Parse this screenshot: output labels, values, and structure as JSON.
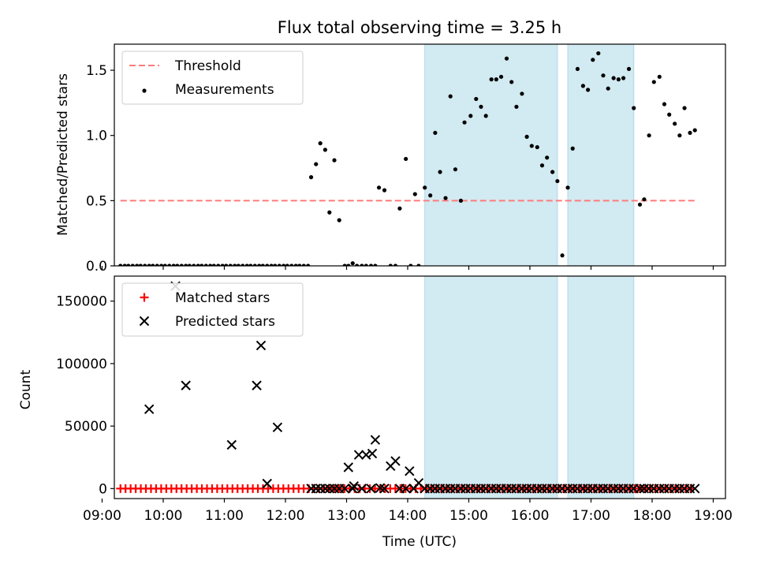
{
  "chart_data": [
    {
      "type": "scatter",
      "title": "Flux total observing time = 3.25 h",
      "ylabel": "Matched/Predicted stars",
      "xlabel": "",
      "xlim": [
        9.2,
        19.2
      ],
      "ylim": [
        0,
        1.7
      ],
      "yticks": [
        0.0,
        0.5,
        1.0,
        1.5
      ],
      "ytick_labels": [
        "0.0",
        "0.5",
        "1.0",
        "1.5"
      ],
      "legend": {
        "placement": "upper-left"
      },
      "shaded_spans": [
        [
          14.28,
          16.45
        ],
        [
          16.62,
          17.7
        ]
      ],
      "series": [
        {
          "name": "Threshold",
          "kind": "dashed-line",
          "color": "#ff7b7b",
          "x": [
            9.3,
            18.72
          ],
          "y": [
            0.5,
            0.5
          ]
        },
        {
          "name": "Measurements",
          "kind": "dots",
          "color": "#000000",
          "points": [
            [
              9.3,
              0
            ],
            [
              9.37,
              0
            ],
            [
              9.43,
              0
            ],
            [
              9.5,
              0
            ],
            [
              9.57,
              0
            ],
            [
              9.63,
              0
            ],
            [
              9.7,
              0
            ],
            [
              9.77,
              0
            ],
            [
              9.83,
              0
            ],
            [
              9.9,
              0
            ],
            [
              9.97,
              0
            ],
            [
              10.03,
              0
            ],
            [
              10.1,
              0
            ],
            [
              10.17,
              0
            ],
            [
              10.23,
              0
            ],
            [
              10.3,
              0
            ],
            [
              10.37,
              0
            ],
            [
              10.43,
              0
            ],
            [
              10.5,
              0
            ],
            [
              10.57,
              0
            ],
            [
              10.63,
              0
            ],
            [
              10.7,
              0
            ],
            [
              10.77,
              0
            ],
            [
              10.83,
              0
            ],
            [
              10.9,
              0
            ],
            [
              10.97,
              0
            ],
            [
              11.03,
              0
            ],
            [
              11.1,
              0
            ],
            [
              11.17,
              0
            ],
            [
              11.23,
              0
            ],
            [
              11.3,
              0
            ],
            [
              11.37,
              0
            ],
            [
              11.43,
              0
            ],
            [
              11.5,
              0
            ],
            [
              11.57,
              0
            ],
            [
              11.63,
              0
            ],
            [
              11.7,
              0
            ],
            [
              11.77,
              0
            ],
            [
              11.83,
              0
            ],
            [
              11.9,
              0
            ],
            [
              11.97,
              0
            ],
            [
              12.03,
              0
            ],
            [
              12.1,
              0
            ],
            [
              12.17,
              0
            ],
            [
              12.23,
              0
            ],
            [
              12.3,
              0
            ],
            [
              12.37,
              0
            ],
            [
              12.42,
              0.68
            ],
            [
              12.5,
              0.78
            ],
            [
              12.57,
              0.94
            ],
            [
              12.65,
              0.89
            ],
            [
              12.72,
              0.41
            ],
            [
              12.8,
              0.81
            ],
            [
              12.88,
              0.35
            ],
            [
              12.97,
              0
            ],
            [
              13.03,
              0
            ],
            [
              13.1,
              0.02
            ],
            [
              13.17,
              0
            ],
            [
              13.25,
              0
            ],
            [
              13.32,
              0
            ],
            [
              13.4,
              0
            ],
            [
              13.47,
              0
            ],
            [
              13.53,
              0.6
            ],
            [
              13.62,
              0.58
            ],
            [
              13.72,
              0
            ],
            [
              13.8,
              0
            ],
            [
              13.87,
              0.44
            ],
            [
              13.97,
              0.82
            ],
            [
              14.05,
              0
            ],
            [
              14.12,
              0.55
            ],
            [
              14.18,
              0
            ],
            [
              14.28,
              0.6
            ],
            [
              14.37,
              0.54
            ],
            [
              14.45,
              1.02
            ],
            [
              14.53,
              0.72
            ],
            [
              14.62,
              0.52
            ],
            [
              14.7,
              1.3
            ],
            [
              14.78,
              0.74
            ],
            [
              14.87,
              0.5
            ],
            [
              14.93,
              1.1
            ],
            [
              15.03,
              1.15
            ],
            [
              15.12,
              1.28
            ],
            [
              15.2,
              1.22
            ],
            [
              15.28,
              1.15
            ],
            [
              15.37,
              1.43
            ],
            [
              15.45,
              1.43
            ],
            [
              15.53,
              1.45
            ],
            [
              15.62,
              1.59
            ],
            [
              15.7,
              1.41
            ],
            [
              15.78,
              1.22
            ],
            [
              15.87,
              1.32
            ],
            [
              15.95,
              0.99
            ],
            [
              16.03,
              0.92
            ],
            [
              16.12,
              0.91
            ],
            [
              16.2,
              0.77
            ],
            [
              16.28,
              0.83
            ],
            [
              16.37,
              0.72
            ],
            [
              16.45,
              0.65
            ],
            [
              16.53,
              0.08
            ],
            [
              16.62,
              0.6
            ],
            [
              16.7,
              0.9
            ],
            [
              16.78,
              1.51
            ],
            [
              16.87,
              1.38
            ],
            [
              16.95,
              1.35
            ],
            [
              17.03,
              1.58
            ],
            [
              17.12,
              1.63
            ],
            [
              17.2,
              1.46
            ],
            [
              17.28,
              1.36
            ],
            [
              17.37,
              1.44
            ],
            [
              17.45,
              1.43
            ],
            [
              17.53,
              1.44
            ],
            [
              17.62,
              1.51
            ],
            [
              17.7,
              1.21
            ],
            [
              17.8,
              0.47
            ],
            [
              17.87,
              0.51
            ],
            [
              17.95,
              1.0
            ],
            [
              18.03,
              1.41
            ],
            [
              18.12,
              1.45
            ],
            [
              18.2,
              1.24
            ],
            [
              18.28,
              1.16
            ],
            [
              18.37,
              1.09
            ],
            [
              18.45,
              1.0
            ],
            [
              18.53,
              1.21
            ],
            [
              18.62,
              1.02
            ],
            [
              18.7,
              1.04
            ]
          ]
        }
      ]
    },
    {
      "type": "scatter",
      "title": "",
      "ylabel": "Count",
      "xlabel": "Time (UTC)",
      "xlim": [
        9.2,
        19.2
      ],
      "ylim": [
        -8000,
        170000
      ],
      "yticks": [
        0,
        50000,
        100000,
        150000
      ],
      "ytick_labels": [
        "0",
        "50000",
        "100000",
        "150000"
      ],
      "xticks": [
        9,
        10,
        11,
        12,
        13,
        14,
        15,
        16,
        17,
        18,
        19
      ],
      "xtick_labels": [
        "09:00",
        "10:00",
        "11:00",
        "12:00",
        "13:00",
        "14:00",
        "15:00",
        "16:00",
        "17:00",
        "18:00",
        "19:00"
      ],
      "legend": {
        "placement": "upper-left"
      },
      "shaded_spans": [
        [
          14.28,
          16.45
        ],
        [
          16.62,
          17.7
        ]
      ],
      "series": [
        {
          "name": "Matched stars",
          "kind": "plus",
          "color": "#ff0000",
          "x_start": 9.3,
          "x_end": 18.7,
          "x_step": 0.0833,
          "y": 0
        },
        {
          "name": "Predicted stars",
          "kind": "x",
          "color": "#000000",
          "points": [
            [
              9.77,
              63500
            ],
            [
              10.2,
              162000
            ],
            [
              10.37,
              82500
            ],
            [
              11.12,
              35000
            ],
            [
              11.53,
              82500
            ],
            [
              11.6,
              114500
            ],
            [
              11.7,
              4000
            ],
            [
              11.87,
              49000
            ],
            [
              13.03,
              17000
            ],
            [
              13.12,
              2000
            ],
            [
              13.2,
              27000
            ],
            [
              13.32,
              27000
            ],
            [
              13.42,
              28000
            ],
            [
              13.47,
              39000
            ],
            [
              13.55,
              500
            ],
            [
              13.62,
              0
            ],
            [
              13.72,
              18000
            ],
            [
              13.8,
              22000
            ],
            [
              14.03,
              14000
            ],
            [
              14.18,
              4500
            ],
            [
              12.42,
              0
            ],
            [
              12.5,
              0
            ],
            [
              12.57,
              0
            ],
            [
              12.65,
              0
            ],
            [
              12.72,
              0
            ],
            [
              12.8,
              0
            ],
            [
              12.88,
              0
            ],
            [
              12.97,
              0
            ],
            [
              13.1,
              0
            ],
            [
              13.25,
              0
            ],
            [
              13.4,
              0
            ],
            [
              13.87,
              0
            ],
            [
              13.97,
              0
            ],
            [
              14.1,
              0
            ],
            [
              14.28,
              0
            ],
            [
              14.37,
              0
            ],
            [
              14.45,
              0
            ],
            [
              14.53,
              0
            ],
            [
              14.62,
              0
            ],
            [
              14.7,
              0
            ],
            [
              14.78,
              0
            ],
            [
              14.87,
              0
            ],
            [
              14.95,
              0
            ],
            [
              15.03,
              0
            ],
            [
              15.12,
              0
            ],
            [
              15.2,
              0
            ],
            [
              15.28,
              0
            ],
            [
              15.37,
              0
            ],
            [
              15.45,
              0
            ],
            [
              15.53,
              0
            ],
            [
              15.62,
              0
            ],
            [
              15.7,
              0
            ],
            [
              15.78,
              0
            ],
            [
              15.87,
              0
            ],
            [
              15.95,
              0
            ],
            [
              16.03,
              0
            ],
            [
              16.12,
              0
            ],
            [
              16.2,
              0
            ],
            [
              16.28,
              0
            ],
            [
              16.37,
              0
            ],
            [
              16.45,
              0
            ],
            [
              16.53,
              0
            ],
            [
              16.62,
              0
            ],
            [
              16.7,
              0
            ],
            [
              16.78,
              0
            ],
            [
              16.87,
              0
            ],
            [
              16.95,
              0
            ],
            [
              17.03,
              0
            ],
            [
              17.12,
              0
            ],
            [
              17.2,
              0
            ],
            [
              17.28,
              0
            ],
            [
              17.37,
              0
            ],
            [
              17.45,
              0
            ],
            [
              17.53,
              0
            ],
            [
              17.62,
              0
            ],
            [
              17.7,
              0
            ],
            [
              17.8,
              0
            ],
            [
              17.87,
              0
            ],
            [
              17.95,
              0
            ],
            [
              18.03,
              0
            ],
            [
              18.12,
              0
            ],
            [
              18.2,
              0
            ],
            [
              18.28,
              0
            ],
            [
              18.37,
              0
            ],
            [
              18.45,
              0
            ],
            [
              18.53,
              0
            ],
            [
              18.62,
              0
            ],
            [
              18.7,
              0
            ]
          ]
        }
      ]
    }
  ],
  "colors": {
    "span_fill": "#add8e6",
    "threshold": "#ff7b7b",
    "matched": "#ff0000",
    "predicted": "#000000"
  }
}
